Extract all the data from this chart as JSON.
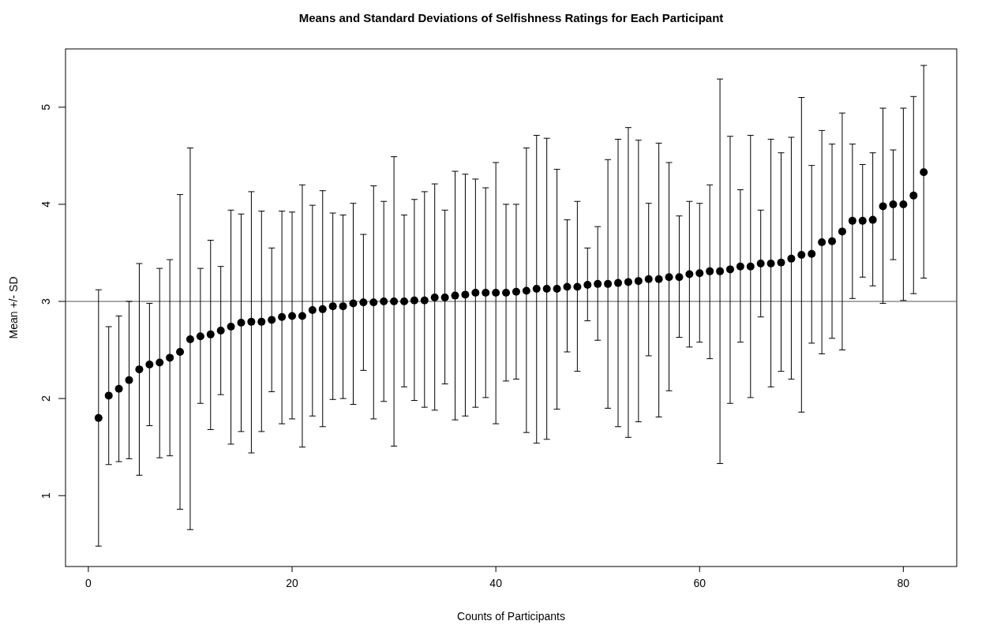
{
  "chart_data": {
    "type": "scatter",
    "title": "Means and Standard Deviations of Selfishness Ratings for Each Participant",
    "xlabel": "Counts of Participants",
    "ylabel": "Mean +/- SD",
    "x": [
      1,
      2,
      3,
      4,
      5,
      6,
      7,
      8,
      9,
      10,
      11,
      12,
      13,
      14,
      15,
      16,
      17,
      18,
      19,
      20,
      21,
      22,
      23,
      24,
      25,
      26,
      27,
      28,
      29,
      30,
      31,
      32,
      33,
      34,
      35,
      36,
      37,
      38,
      39,
      40,
      41,
      42,
      43,
      44,
      45,
      46,
      47,
      48,
      49,
      50,
      51,
      52,
      53,
      54,
      55,
      56,
      57,
      58,
      59,
      60,
      61,
      62,
      63,
      64,
      65,
      66,
      67,
      68,
      69,
      70,
      71,
      72,
      73,
      74,
      75,
      76,
      77,
      78,
      79,
      80,
      81,
      82
    ],
    "series": [
      {
        "color": "#000000",
        "values": [
          1.8,
          2.03,
          2.1,
          2.19,
          2.3,
          2.35,
          2.37,
          2.42,
          2.48,
          2.61,
          2.64,
          2.66,
          2.7,
          2.74,
          2.78,
          2.79,
          2.79,
          2.81,
          2.84,
          2.85,
          2.85,
          2.91,
          2.92,
          2.95,
          2.95,
          2.98,
          2.99,
          2.99,
          3.0,
          3.0,
          3.0,
          3.01,
          3.01,
          3.04,
          3.04,
          3.06,
          3.07,
          3.09,
          3.09,
          3.09,
          3.09,
          3.1,
          3.11,
          3.13,
          3.13,
          3.13,
          3.15,
          3.15,
          3.17,
          3.18,
          3.18,
          3.19,
          3.2,
          3.21,
          3.23,
          3.23,
          3.25,
          3.25,
          3.28,
          3.29,
          3.31,
          3.31,
          3.33,
          3.36,
          3.36,
          3.39,
          3.39,
          3.4,
          3.44,
          3.48,
          3.49,
          3.61,
          3.62,
          3.72,
          3.83,
          3.83,
          3.84,
          3.98,
          4.0,
          4.0,
          4.09,
          4.33
        ],
        "errors": [
          [
            0.48,
            3.12
          ],
          [
            1.32,
            2.74
          ],
          [
            1.35,
            2.85
          ],
          [
            1.38,
            3.0
          ],
          [
            1.21,
            3.39
          ],
          [
            1.72,
            2.98
          ],
          [
            1.39,
            3.34
          ],
          [
            1.41,
            3.43
          ],
          [
            0.86,
            4.1
          ],
          [
            0.65,
            4.58
          ],
          [
            1.95,
            3.34
          ],
          [
            1.68,
            3.63
          ],
          [
            2.04,
            3.36
          ],
          [
            1.53,
            3.94
          ],
          [
            1.66,
            3.9
          ],
          [
            1.44,
            4.13
          ],
          [
            1.66,
            3.93
          ],
          [
            2.07,
            3.55
          ],
          [
            1.74,
            3.93
          ],
          [
            1.79,
            3.92
          ],
          [
            1.5,
            4.2
          ],
          [
            1.82,
            3.99
          ],
          [
            1.71,
            4.14
          ],
          [
            1.99,
            3.91
          ],
          [
            2.0,
            3.89
          ],
          [
            1.94,
            4.01
          ],
          [
            2.29,
            3.69
          ],
          [
            1.79,
            4.19
          ],
          [
            1.97,
            4.03
          ],
          [
            1.51,
            4.49
          ],
          [
            2.12,
            3.89
          ],
          [
            1.98,
            4.05
          ],
          [
            1.91,
            4.13
          ],
          [
            1.88,
            4.21
          ],
          [
            2.15,
            3.94
          ],
          [
            1.78,
            4.34
          ],
          [
            1.82,
            4.31
          ],
          [
            1.91,
            4.26
          ],
          [
            2.01,
            4.17
          ],
          [
            1.74,
            4.43
          ],
          [
            2.18,
            4.0
          ],
          [
            2.2,
            4.0
          ],
          [
            1.65,
            4.58
          ],
          [
            1.54,
            4.71
          ],
          [
            1.58,
            4.68
          ],
          [
            1.89,
            4.36
          ],
          [
            2.48,
            3.84
          ],
          [
            2.28,
            4.03
          ],
          [
            2.8,
            3.55
          ],
          [
            2.6,
            3.77
          ],
          [
            1.9,
            4.46
          ],
          [
            1.71,
            4.67
          ],
          [
            1.6,
            4.79
          ],
          [
            1.76,
            4.66
          ],
          [
            2.44,
            4.01
          ],
          [
            1.81,
            4.63
          ],
          [
            2.08,
            4.43
          ],
          [
            2.63,
            3.88
          ],
          [
            2.53,
            4.03
          ],
          [
            2.58,
            4.01
          ],
          [
            2.41,
            4.2
          ],
          [
            1.33,
            5.29
          ],
          [
            1.95,
            4.7
          ],
          [
            2.58,
            4.15
          ],
          [
            2.01,
            4.71
          ],
          [
            2.84,
            3.94
          ],
          [
            2.12,
            4.67
          ],
          [
            2.28,
            4.53
          ],
          [
            2.2,
            4.69
          ],
          [
            1.86,
            5.1
          ],
          [
            2.57,
            4.4
          ],
          [
            2.46,
            4.76
          ],
          [
            2.62,
            4.62
          ],
          [
            2.5,
            4.94
          ],
          [
            3.03,
            4.62
          ],
          [
            3.25,
            4.41
          ],
          [
            3.16,
            4.53
          ],
          [
            2.98,
            4.99
          ],
          [
            3.43,
            4.56
          ],
          [
            3.01,
            4.99
          ],
          [
            3.08,
            5.11
          ],
          [
            3.24,
            5.43
          ]
        ]
      }
    ],
    "xlim": [
      -2.24,
      85.24
    ],
    "ylim": [
      0.27,
      5.6
    ],
    "xticks": [
      0,
      20,
      40,
      60,
      80
    ],
    "yticks": [
      1,
      2,
      3,
      4,
      5
    ],
    "ref_lines": [
      {
        "axis": "y",
        "value": 3,
        "color": "#555555"
      }
    ],
    "marker": "circle"
  }
}
